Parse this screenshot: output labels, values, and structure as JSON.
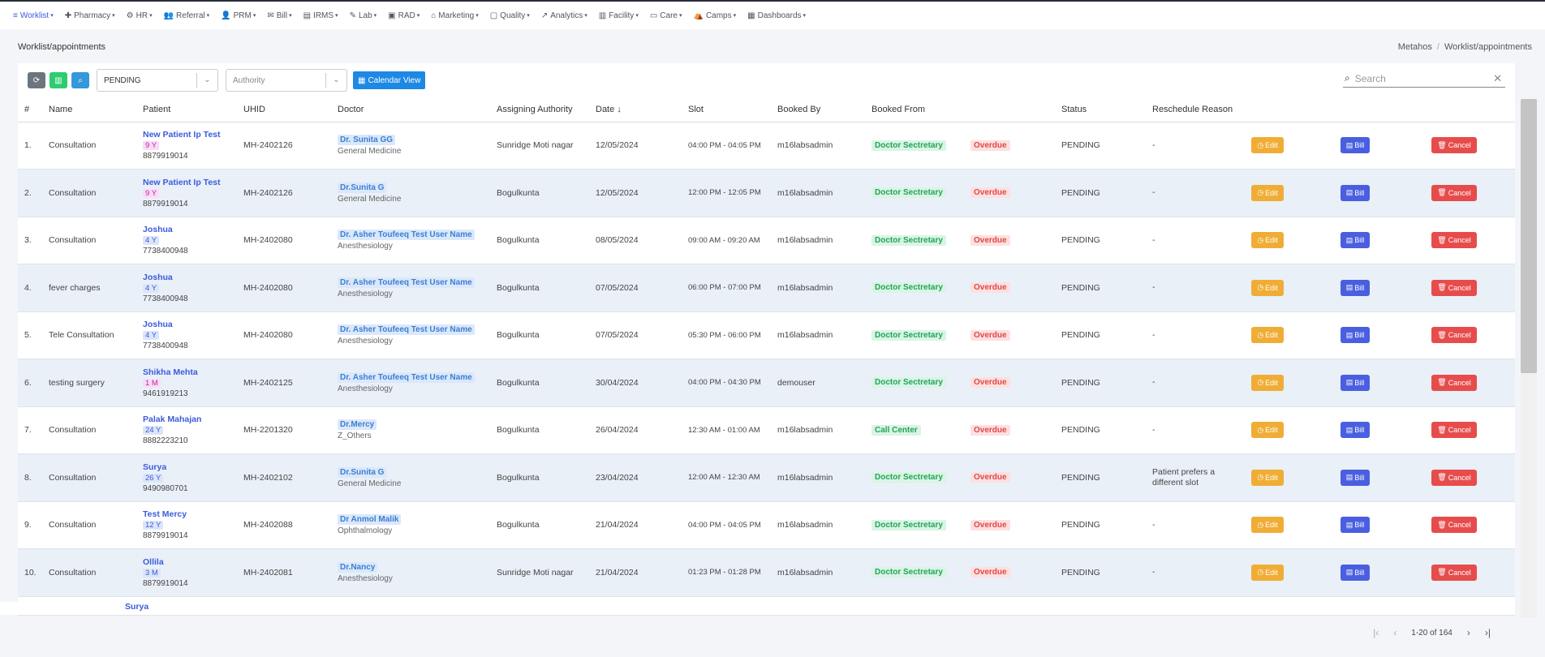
{
  "nav": [
    {
      "icon": "≡",
      "label": "Worklist",
      "active": true
    },
    {
      "icon": "✚",
      "label": "Pharmacy"
    },
    {
      "icon": "⚙",
      "label": "HR"
    },
    {
      "icon": "👥",
      "label": "Referral"
    },
    {
      "icon": "👤",
      "label": "PRM"
    },
    {
      "icon": "✉",
      "label": "Bill"
    },
    {
      "icon": "▤",
      "label": "IRMS"
    },
    {
      "icon": "✎",
      "label": "Lab"
    },
    {
      "icon": "▣",
      "label": "RAD"
    },
    {
      "icon": "⌂",
      "label": "Marketing"
    },
    {
      "icon": "▢",
      "label": "Quality"
    },
    {
      "icon": "↗",
      "label": "Analytics"
    },
    {
      "icon": "▥",
      "label": "Facility"
    },
    {
      "icon": "▭",
      "label": "Care"
    },
    {
      "icon": "⛺",
      "label": "Camps"
    },
    {
      "icon": "▦",
      "label": "Dashboards"
    }
  ],
  "page_title": "Worklist/appointments",
  "breadcrumb": {
    "root": "Metahos",
    "sep": "/",
    "current": "Worklist/appointments"
  },
  "toolbar": {
    "status_select": "PENDING",
    "authority_placeholder": "Authority",
    "calendar_label": "Calendar View"
  },
  "search": {
    "placeholder": "Search"
  },
  "columns": [
    "#",
    "Name",
    "Patient",
    "UHID",
    "Doctor",
    "Assigning Authority",
    "Date",
    "Slot",
    "Booked By",
    "Booked From",
    "",
    "Status",
    "Reschedule Reason",
    "",
    "",
    ""
  ],
  "sort_indicator": "↓",
  "actions": {
    "edit": "Edit",
    "bill": "Bill",
    "cancel": "Cancel"
  },
  "rows": [
    {
      "n": "1.",
      "name": "Consultation",
      "patient": "New Patient Ip Test",
      "age": "9 Y",
      "age_style": "m",
      "phone": "8879919014",
      "uhid": "MH-2402126",
      "doctor": "Dr. Sunita GG",
      "spec": "General Medicine",
      "auth": "Sunridge Moti nagar",
      "date": "12/05/2024",
      "slot": "04:00 PM - 04:05 PM",
      "by": "m16labsadmin",
      "from": "Doctor Sectretary",
      "flag": "Overdue",
      "status": "PENDING",
      "reason": "-"
    },
    {
      "n": "2.",
      "name": "Consultation",
      "patient": "New Patient Ip Test",
      "age": "9 Y",
      "age_style": "m",
      "phone": "8879919014",
      "uhid": "MH-2402126",
      "doctor": "Dr.Sunita G",
      "spec": "General Medicine",
      "auth": "Bogulkunta",
      "date": "12/05/2024",
      "slot": "12:00 PM - 12:05 PM",
      "by": "m16labsadmin",
      "from": "Doctor Sectretary",
      "flag": "Overdue",
      "status": "PENDING",
      "reason": "-"
    },
    {
      "n": "3.",
      "name": "Consultation",
      "patient": "Joshua",
      "age": "4 Y",
      "age_style": "b",
      "phone": "7738400948",
      "uhid": "MH-2402080",
      "doctor": "Dr. Asher Toufeeq Test User Name",
      "spec": "Anesthesiology",
      "auth": "Bogulkunta",
      "date": "08/05/2024",
      "slot": "09:00 AM - 09:20 AM",
      "by": "m16labsadmin",
      "from": "Doctor Sectretary",
      "flag": "Overdue",
      "status": "PENDING",
      "reason": "-"
    },
    {
      "n": "4.",
      "name": "fever charges",
      "patient": "Joshua",
      "age": "4 Y",
      "age_style": "b",
      "phone": "7738400948",
      "uhid": "MH-2402080",
      "doctor": "Dr. Asher Toufeeq Test User Name",
      "spec": "Anesthesiology",
      "auth": "Bogulkunta",
      "date": "07/05/2024",
      "slot": "06:00 PM - 07:00 PM",
      "by": "m16labsadmin",
      "from": "Doctor Sectretary",
      "flag": "Overdue",
      "status": "PENDING",
      "reason": "-"
    },
    {
      "n": "5.",
      "name": "Tele Consultation",
      "patient": "Joshua",
      "age": "4 Y",
      "age_style": "b",
      "phone": "7738400948",
      "uhid": "MH-2402080",
      "doctor": "Dr. Asher Toufeeq Test User Name",
      "spec": "Anesthesiology",
      "auth": "Bogulkunta",
      "date": "07/05/2024",
      "slot": "05:30 PM - 06:00 PM",
      "by": "m16labsadmin",
      "from": "Doctor Sectretary",
      "flag": "Overdue",
      "status": "PENDING",
      "reason": "-"
    },
    {
      "n": "6.",
      "name": "testing surgery",
      "patient": "Shikha Mehta",
      "age": "1 M",
      "age_style": "m",
      "phone": "9461919213",
      "uhid": "MH-2402125",
      "doctor": "Dr. Asher Toufeeq Test User Name",
      "spec": "Anesthesiology",
      "auth": "Bogulkunta",
      "date": "30/04/2024",
      "slot": "04:00 PM - 04:30 PM",
      "by": "demouser",
      "from": "Doctor Sectretary",
      "flag": "Overdue",
      "status": "PENDING",
      "reason": "-"
    },
    {
      "n": "7.",
      "name": "Consultation",
      "patient": "Palak Mahajan",
      "age": "24 Y",
      "age_style": "b",
      "phone": "8882223210",
      "uhid": "MH-2201320",
      "doctor": "Dr.Mercy",
      "spec": "Z_Others",
      "auth": "Bogulkunta",
      "date": "26/04/2024",
      "slot": "12:30 AM - 01:00 AM",
      "by": "m16labsadmin",
      "from": "Call Center",
      "flag": "Overdue",
      "status": "PENDING",
      "reason": "-"
    },
    {
      "n": "8.",
      "name": "Consultation",
      "patient": "Surya",
      "age": "26 Y",
      "age_style": "b",
      "phone": "9490980701",
      "uhid": "MH-2402102",
      "doctor": "Dr.Sunita G",
      "spec": "General Medicine",
      "auth": "Bogulkunta",
      "date": "23/04/2024",
      "slot": "12:00 AM - 12:30 AM",
      "by": "m16labsadmin",
      "from": "Doctor Sectretary",
      "flag": "Overdue",
      "status": "PENDING",
      "reason": "Patient prefers a different slot"
    },
    {
      "n": "9.",
      "name": "Consultation",
      "patient": "Test Mercy",
      "age": "12 Y",
      "age_style": "b",
      "phone": "8879919014",
      "uhid": "MH-2402088",
      "doctor": "Dr Anmol Malik",
      "spec": "Ophthalmology",
      "auth": "Bogulkunta",
      "date": "21/04/2024",
      "slot": "04:00 PM - 04:05 PM",
      "by": "m16labsadmin",
      "from": "Doctor Sectretary",
      "flag": "Overdue",
      "status": "PENDING",
      "reason": "-"
    },
    {
      "n": "10.",
      "name": "Consultation",
      "patient": "Ollila",
      "age": "3 M",
      "age_style": "b",
      "phone": "8879919014",
      "uhid": "MH-2402081",
      "doctor": "Dr.Nancy",
      "spec": "Anesthesiology",
      "auth": "Sunridge Moti nagar",
      "date": "21/04/2024",
      "slot": "01:23 PM - 01:28 PM",
      "by": "m16labsadmin",
      "from": "Doctor Sectretary",
      "flag": "Overdue",
      "status": "PENDING",
      "reason": "-"
    }
  ],
  "partial_row": {
    "patient": "Surya"
  },
  "pagination": {
    "range": "1-20 of 164"
  }
}
